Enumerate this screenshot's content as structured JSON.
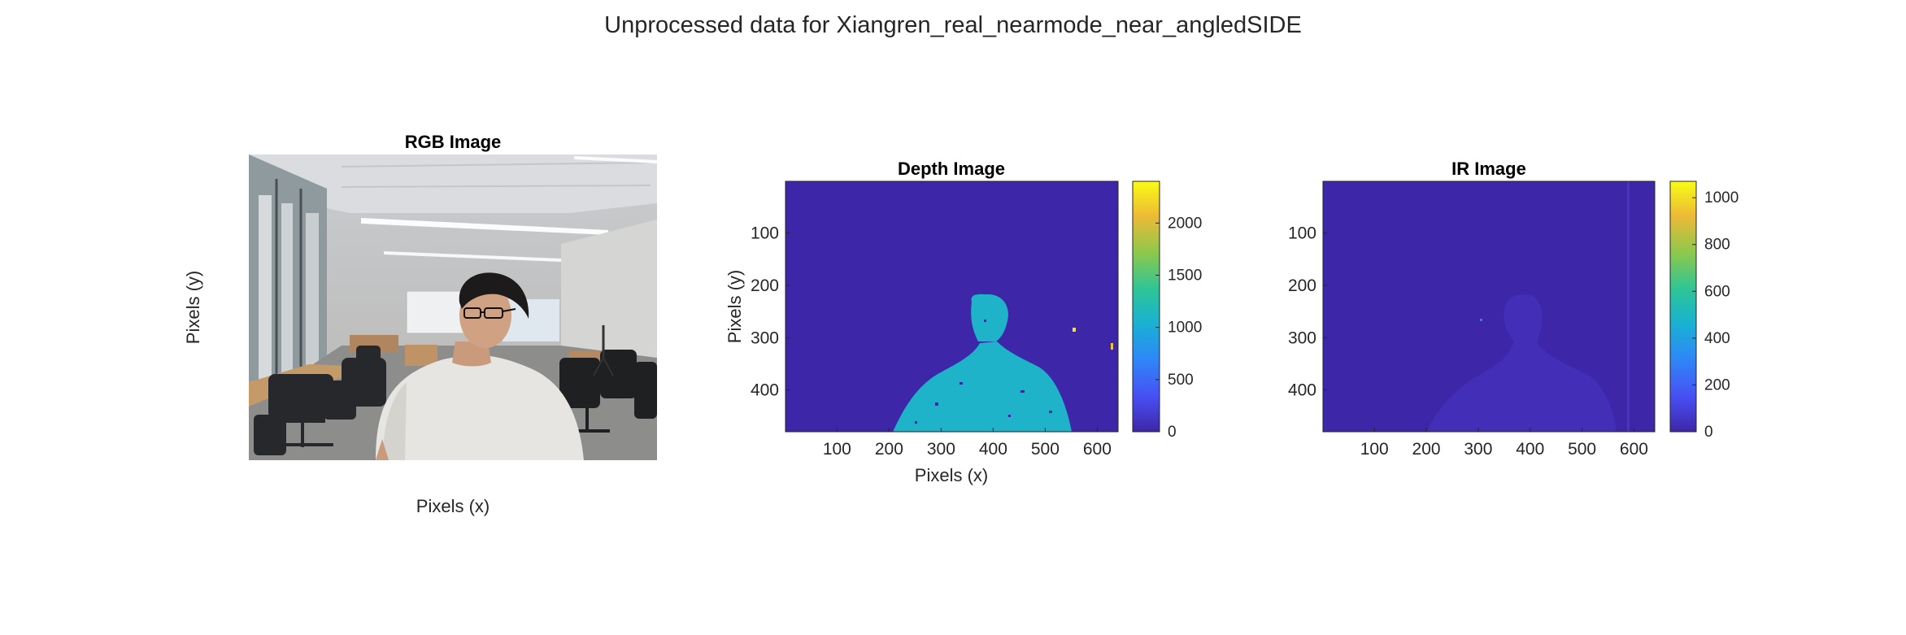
{
  "figure": {
    "title": "Unprocessed data for Xiangren_real_nearmode_near_angledSIDE"
  },
  "chart_data": [
    {
      "type": "image",
      "title": "RGB Image",
      "xlabel": "Pixels (x)",
      "ylabel": "Pixels (y)",
      "content": "color photograph of a man in a white t-shirt seated in an office/lab room with chairs, desks and a whiteboard",
      "axis_ticks_visible": false
    },
    {
      "type": "heatmap",
      "title": "Depth Image",
      "xlabel": "Pixels (x)",
      "ylabel": "Pixels (y)",
      "xlim": [
        1,
        640
      ],
      "ylim": [
        1,
        480
      ],
      "xticks": [
        100,
        200,
        300,
        400,
        500,
        600
      ],
      "yticks": [
        100,
        200,
        300,
        400
      ],
      "y_reversed": true,
      "colormap": "parula",
      "colorbar": {
        "min": 0,
        "max": 2400,
        "ticks": [
          0,
          500,
          1000,
          1500,
          2000
        ]
      },
      "background_value": 0,
      "subject_value": 1050,
      "outlier_value": 2300
    },
    {
      "type": "heatmap",
      "title": "IR Image",
      "xlabel": "",
      "ylabel": "",
      "xlim": [
        1,
        640
      ],
      "ylim": [
        1,
        480
      ],
      "xticks": [
        100,
        200,
        300,
        400,
        500,
        600
      ],
      "yticks": [
        100,
        200,
        300,
        400
      ],
      "y_reversed": true,
      "colormap": "parula",
      "colorbar": {
        "min": 0,
        "max": 1070,
        "ticks": [
          0,
          200,
          400,
          600,
          800,
          1000
        ]
      },
      "background_value": 0,
      "subject_value": 30
    }
  ]
}
